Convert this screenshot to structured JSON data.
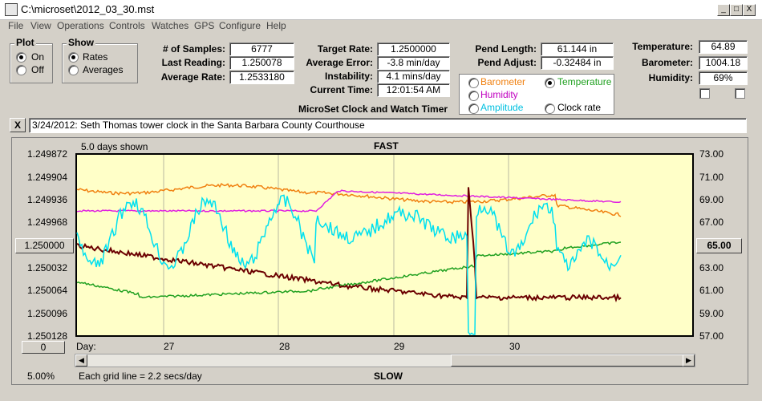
{
  "window": {
    "title": "C:\\microset\\2012_03_30.mst",
    "min": "_",
    "max": "□",
    "close": "X"
  },
  "menu": [
    "File",
    "View",
    "Operations",
    "Controls",
    "Watches",
    "GPS",
    "Configure",
    "Help"
  ],
  "plot_group": {
    "title": "Plot",
    "options": [
      "On",
      "Off"
    ],
    "selected": "On"
  },
  "show_group": {
    "title": "Show",
    "options": [
      "Rates",
      "Averages"
    ],
    "selected": "Rates"
  },
  "stats": {
    "samples_label": "# of Samples:",
    "samples": "6777",
    "last_label": "Last Reading:",
    "last": "1.250078",
    "avg_label": "Average Rate:",
    "avg": "1.2533180",
    "target_label": "Target Rate:",
    "target": "1.2500000",
    "err_label": "Average Error:",
    "err": "-3.8 min/day",
    "inst_label": "Instability:",
    "inst": "4.1 mins/day",
    "time_label": "Current Time:",
    "time": "12:01:54 AM",
    "pend_len_label": "Pend Length:",
    "pend_len": "61.144 in",
    "pend_adj_label": "Pend Adjust:",
    "pend_adj": "-0.32484 in",
    "temp_label": "Temperature:",
    "temp": "64.89",
    "baro_label": "Barometer:",
    "baro": "1004.18",
    "hum_label": "Humidity:",
    "hum": "69%"
  },
  "sensors": {
    "barometer": "Barometer",
    "temperature": "Temperature",
    "humidity": "Humidity",
    "amplitude": "Amplitude",
    "clock_rate": "Clock rate",
    "selected": "Temperature"
  },
  "heading": "MicroSet Clock and Watch Timer",
  "note_close": "X",
  "note": "3/24/2012: Seth Thomas tower clock in the Santa Barbara County Courthouse",
  "plot": {
    "days_shown": "5.0 days shown",
    "top_label": "FAST",
    "bottom_label": "SLOW",
    "left_axis": [
      "1.249872",
      "1.249904",
      "1.249936",
      "1.249968",
      "1.250000",
      "1.250032",
      "1.250064",
      "1.250096",
      "1.250128"
    ],
    "center_button": "1.250000",
    "right_axis": [
      "73.00",
      "71.00",
      "69.00",
      "67.00",
      "65.00",
      "63.00",
      "61.00",
      "59.00",
      "57.00"
    ],
    "right_button": "65.00",
    "day_label": "Day:",
    "days": [
      "27",
      "28",
      "29",
      "30"
    ],
    "zero_button": "0",
    "percent": "5.00%",
    "grid_note": "Each grid line = 2.2 secs/day",
    "colors": {
      "rate": "#00e0f0",
      "average": "#6b0000",
      "temperature": "#20a020",
      "barometer": "#f08010",
      "humidity": "#e020e0",
      "bg": "#ffffc8"
    }
  }
}
